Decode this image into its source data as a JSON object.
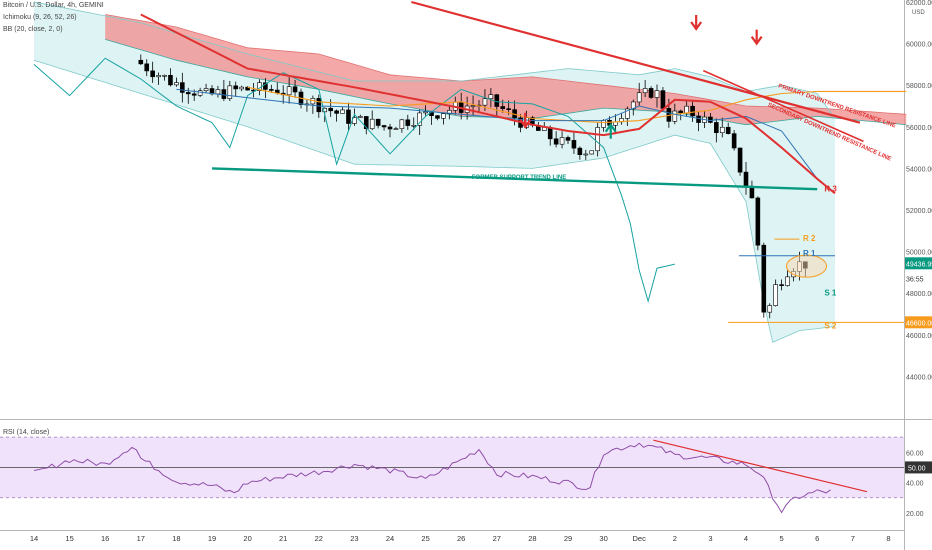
{
  "header": {
    "title": "Bitcoin / U.S. Dollar, 4h, GEMINI",
    "ichimoku": "Ichimoku (9, 26, 52, 26)",
    "bb": "BB (20, close, 2, 0)",
    "rsi": "RSI (14, close)"
  },
  "chart_data": {
    "type": "candlestick",
    "currency": "USD",
    "price_axis": {
      "ylim": [
        42000,
        62000
      ],
      "ticks": [
        62000,
        60000,
        58000,
        56000,
        54000,
        52000,
        50000,
        48000,
        46000,
        44000
      ],
      "tick_labels": [
        "62000.00",
        "60000.00",
        "58000.00",
        "56000.00",
        "54000.00",
        "52000.00",
        "50000.00",
        "48000.00",
        "46000.00",
        "44000.00"
      ],
      "badges": [
        {
          "label": "49436.95",
          "value": 49437,
          "color": "#089981"
        },
        {
          "label": "36:55",
          "value": 48700,
          "color": "#444444"
        },
        {
          "label": "46600.00",
          "value": 46600,
          "color": "#f89b1c"
        }
      ]
    },
    "rsi_axis": {
      "ylim": [
        10,
        80
      ],
      "ticks": [
        60,
        50,
        40,
        20
      ],
      "tick_labels": [
        "60.00",
        "50.00",
        "40.00",
        "20.00"
      ],
      "levels": [
        70,
        50,
        30
      ]
    },
    "x_labels": [
      "14",
      "15",
      "16",
      "17",
      "18",
      "19",
      "20",
      "21",
      "22",
      "23",
      "24",
      "25",
      "26",
      "27",
      "28",
      "29",
      "30",
      "Dec",
      "2",
      "3",
      "4",
      "5",
      "6",
      "7",
      "8"
    ],
    "annotations": [
      {
        "text": "PRIMARY DOWNTREND RESISTANCE LINE",
        "color": "#e03030"
      },
      {
        "text": "SECONDARY DOWNTREND RESISTANCE LINE",
        "color": "#e03030"
      },
      {
        "text": "FORMER SUPPORT TREND LINE",
        "color": "#089981"
      },
      {
        "text": "R 3",
        "color": "#e03030"
      },
      {
        "text": "R 2",
        "color": "#f89b1c"
      },
      {
        "text": "R 1",
        "color": "#2f75b5"
      },
      {
        "text": "S 1",
        "color": "#089981"
      },
      {
        "text": "S 2",
        "color": "#f89b1c"
      }
    ],
    "levels": {
      "R2": 50600,
      "R1": 49800,
      "S1": 48000,
      "S2": 46600
    },
    "colors": {
      "up_candle": "#ffffff",
      "down_candle": "#000000",
      "cloud_bearish": "#f28b8b",
      "cloud_bullish": "#bfe6e6",
      "bb_fill": "#d8f1f1",
      "rsi_band": "#f1e2fb",
      "rsi_line": "#8e4ea8",
      "trend_red": "#e03030",
      "trend_green": "#089981",
      "kijun": "#f89b1c",
      "tenkan": "#2f75b5",
      "bb_middle": "#e03030",
      "lagging": "#17a2a2"
    }
  }
}
